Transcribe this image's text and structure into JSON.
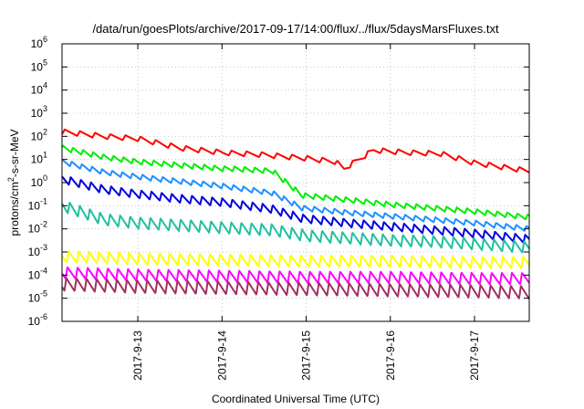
{
  "chart_data": {
    "type": "line",
    "title": "/data/run/goesPlots/archive/2017-09-17/14:00/flux/../flux/5daysMarsFluxes.txt",
    "xlabel": "Coordinated Universal Time (UTC)",
    "ylabel": {
      "base": "protons/cm",
      "sup": "2",
      "rest": "-s-sr-MeV"
    },
    "x_range_days": [
      12.1,
      17.65
    ],
    "x_ticks": [
      {
        "value": 13,
        "label": "2017-9-13"
      },
      {
        "value": 14,
        "label": "2017-9-14"
      },
      {
        "value": 15,
        "label": "2017-9-15"
      },
      {
        "value": 16,
        "label": "2017-9-16"
      },
      {
        "value": 17,
        "label": "2017-9-17"
      }
    ],
    "y_scale": "log",
    "y_range_exp": [
      -6,
      6
    ],
    "y_ticks": [
      {
        "base": "10",
        "exp": "-6"
      },
      {
        "base": "10",
        "exp": "-5"
      },
      {
        "base": "10",
        "exp": "-4"
      },
      {
        "base": "10",
        "exp": "-3"
      },
      {
        "base": "10",
        "exp": "-2"
      },
      {
        "base": "10",
        "exp": "-1"
      },
      {
        "base": "10",
        "exp": "0"
      },
      {
        "base": "10",
        "exp": "1"
      },
      {
        "base": "10",
        "exp": "2"
      },
      {
        "base": "10",
        "exp": "3"
      },
      {
        "base": "10",
        "exp": "4"
      },
      {
        "base": "10",
        "exp": "5"
      },
      {
        "base": "10",
        "exp": "6"
      }
    ],
    "grid": true,
    "series": [
      {
        "color": "#ff0000",
        "trend": [
          [
            12.1,
            2.2
          ],
          [
            12.6,
            2.0
          ],
          [
            13.0,
            1.9
          ],
          [
            13.5,
            1.5
          ],
          [
            14.0,
            1.3
          ],
          [
            14.5,
            1.2
          ],
          [
            15.0,
            1.05
          ],
          [
            15.35,
            0.9
          ],
          [
            15.45,
            0.6
          ],
          [
            15.8,
            1.4
          ],
          [
            16.2,
            1.3
          ],
          [
            16.6,
            1.25
          ],
          [
            17.0,
            0.85
          ],
          [
            17.65,
            0.5
          ]
        ],
        "osc_amplitude": 0.22,
        "osc_period": 0.18
      },
      {
        "color": "#00ee00",
        "trend": [
          [
            12.1,
            1.5
          ],
          [
            12.6,
            1.1
          ],
          [
            13.0,
            0.9
          ],
          [
            13.5,
            0.75
          ],
          [
            14.0,
            0.6
          ],
          [
            14.1,
            0.6
          ],
          [
            14.6,
            0.5
          ],
          [
            14.95,
            -0.55
          ],
          [
            15.5,
            -0.75
          ],
          [
            16.0,
            -0.95
          ],
          [
            16.5,
            -1.1
          ],
          [
            17.0,
            -1.25
          ],
          [
            17.65,
            -1.5
          ]
        ],
        "osc_amplitude": 0.22,
        "osc_period": 0.12
      },
      {
        "color": "#1e90ff",
        "trend": [
          [
            12.1,
            0.9
          ],
          [
            12.6,
            0.45
          ],
          [
            13.0,
            0.25
          ],
          [
            13.5,
            0.05
          ],
          [
            14.0,
            -0.15
          ],
          [
            14.6,
            -0.45
          ],
          [
            14.95,
            -1.1
          ],
          [
            15.5,
            -1.3
          ],
          [
            16.0,
            -1.45
          ],
          [
            16.5,
            -1.6
          ],
          [
            17.0,
            -1.75
          ],
          [
            17.65,
            -2.0
          ]
        ],
        "osc_amplitude": 0.22,
        "osc_period": 0.12
      },
      {
        "color": "#0000dd",
        "trend": [
          [
            12.1,
            0.15
          ],
          [
            12.6,
            -0.3
          ],
          [
            13.0,
            -0.5
          ],
          [
            13.5,
            -0.7
          ],
          [
            14.0,
            -0.85
          ],
          [
            14.6,
            -1.15
          ],
          [
            14.95,
            -1.55
          ],
          [
            15.5,
            -1.75
          ],
          [
            16.0,
            -1.9
          ],
          [
            16.5,
            -2.05
          ],
          [
            17.0,
            -2.2
          ],
          [
            17.65,
            -2.45
          ]
        ],
        "osc_amplitude": 0.35,
        "osc_period": 0.12
      },
      {
        "color": "#20c0a0",
        "trend": [
          [
            12.1,
            -1.0
          ],
          [
            12.6,
            -1.6
          ],
          [
            13.0,
            -1.75
          ],
          [
            13.5,
            -1.85
          ],
          [
            14.0,
            -1.95
          ],
          [
            14.6,
            -2.05
          ],
          [
            15.0,
            -2.3
          ],
          [
            15.5,
            -2.4
          ],
          [
            16.0,
            -2.5
          ],
          [
            16.5,
            -2.55
          ],
          [
            17.0,
            -2.65
          ],
          [
            17.65,
            -2.8
          ]
        ],
        "osc_amplitude": 0.5,
        "osc_period": 0.12
      },
      {
        "color": "#ffff00",
        "trend": [
          [
            12.1,
            -3.2
          ],
          [
            13.0,
            -3.3
          ],
          [
            14.0,
            -3.35
          ],
          [
            15.0,
            -3.4
          ],
          [
            16.0,
            -3.4
          ],
          [
            17.0,
            -3.45
          ],
          [
            17.65,
            -3.45
          ]
        ],
        "osc_amplitude": 0.5,
        "osc_period": 0.12
      },
      {
        "color": "#ff00ff",
        "trend": [
          [
            12.1,
            -3.9
          ],
          [
            13.0,
            -4.0
          ],
          [
            14.0,
            -4.05
          ],
          [
            15.0,
            -4.1
          ],
          [
            16.0,
            -4.1
          ],
          [
            17.0,
            -4.15
          ],
          [
            17.65,
            -4.15
          ]
        ],
        "osc_amplitude": 0.5,
        "osc_period": 0.12
      },
      {
        "color": "#a03060",
        "trend": [
          [
            12.1,
            -4.4
          ],
          [
            13.0,
            -4.5
          ],
          [
            14.0,
            -4.55
          ],
          [
            15.0,
            -4.6
          ],
          [
            16.0,
            -4.65
          ],
          [
            17.0,
            -4.7
          ],
          [
            17.65,
            -4.75
          ]
        ],
        "osc_amplitude": 0.55,
        "osc_period": 0.12
      }
    ]
  }
}
